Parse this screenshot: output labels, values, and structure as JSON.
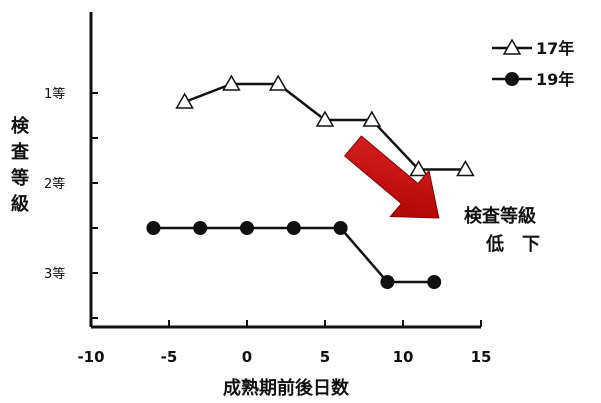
{
  "chart_data": {
    "type": "line",
    "xlabel": "成熟期前後日数",
    "ylabel": "検査等級",
    "xlim": [
      -10,
      15
    ],
    "x_ticks": [
      -10,
      -5,
      0,
      5,
      10,
      15
    ],
    "ylim": [
      0.1,
      3.6
    ],
    "y_inverted": true,
    "y_ticks": [
      1,
      2,
      3
    ],
    "y_tick_labels": [
      "1等",
      "2等",
      "3等"
    ],
    "grid": false,
    "legend_position": "top-right",
    "series": [
      {
        "name": "17年",
        "marker": "open-triangle",
        "color": "#111111",
        "x": [
          -4,
          -1,
          2,
          5,
          8,
          11,
          14
        ],
        "y": [
          1.1,
          0.9,
          0.9,
          1.3,
          1.3,
          1.85,
          1.85
        ]
      },
      {
        "name": "19年",
        "marker": "filled-circle",
        "color": "#111111",
        "x": [
          -6,
          -3,
          0,
          3,
          6,
          9,
          12
        ],
        "y": [
          2.5,
          2.5,
          2.5,
          2.5,
          2.5,
          3.1,
          3.1
        ]
      }
    ],
    "annotation": {
      "line1": "検査等級",
      "line2": "低　下",
      "arrow_color": "#cc1111"
    }
  }
}
